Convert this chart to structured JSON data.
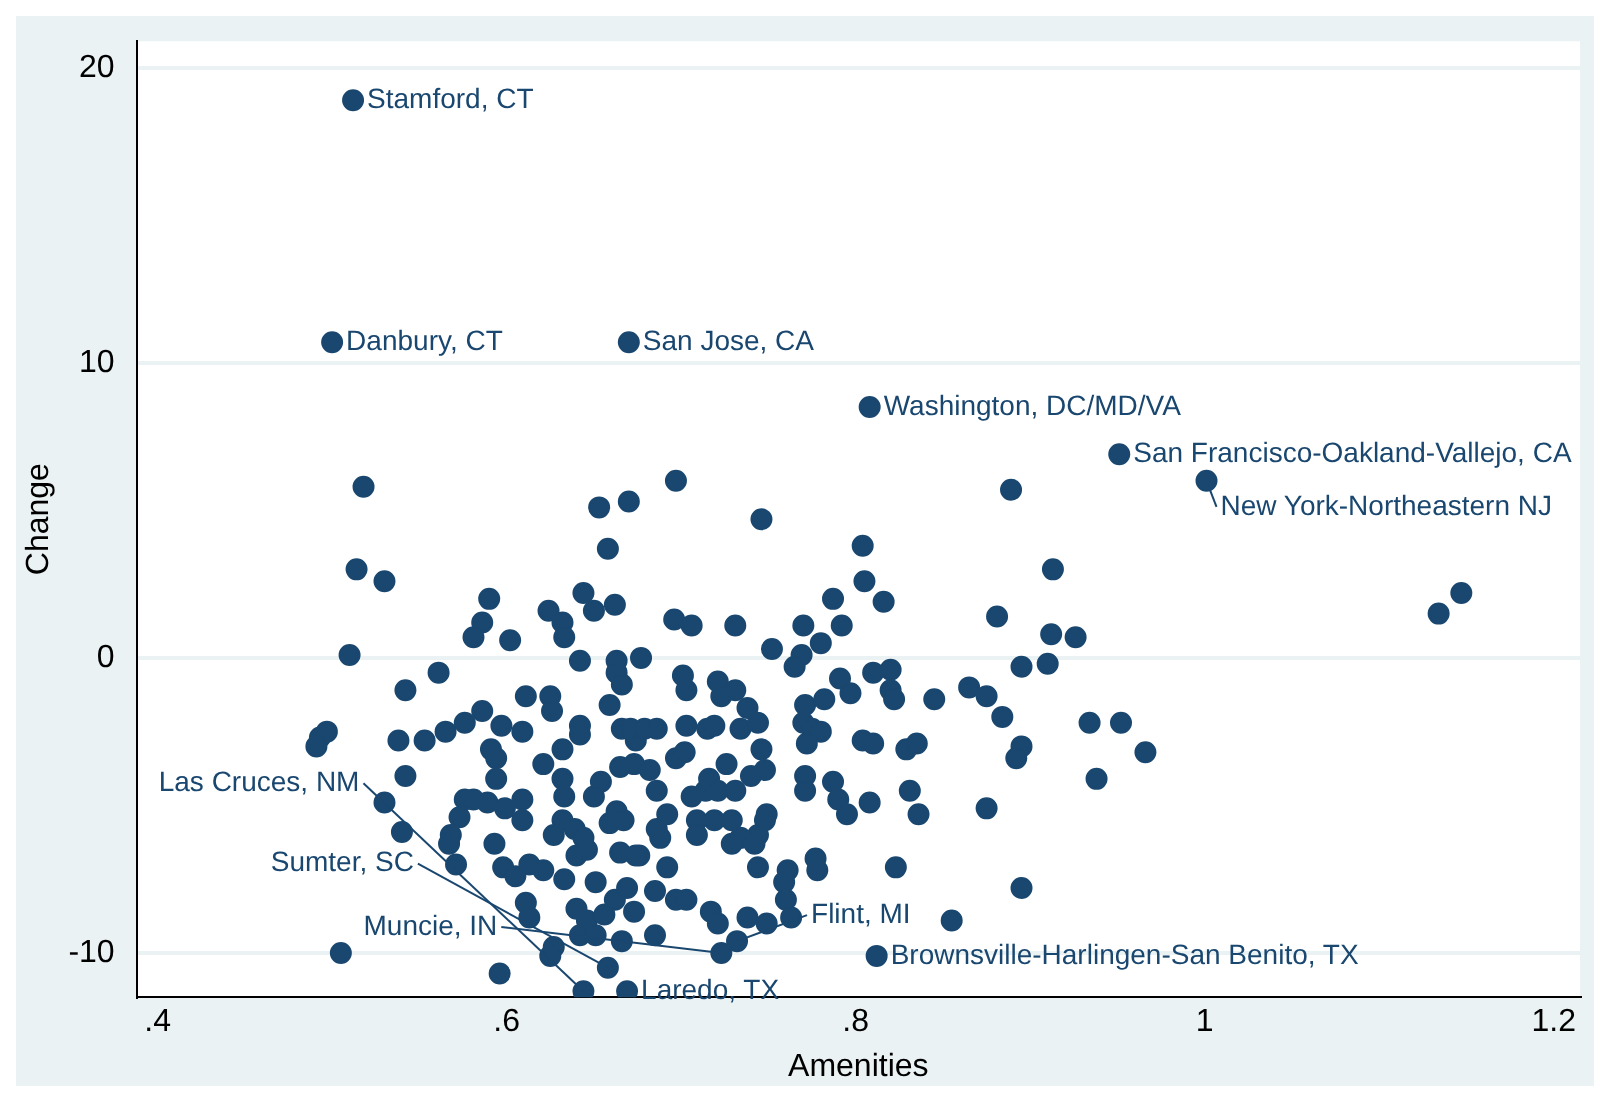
{
  "chart_data": {
    "type": "scatter",
    "xlabel": "Amenities",
    "ylabel": "Change",
    "color": "#1a476f",
    "marker": "circle",
    "grid": "y",
    "legend": false,
    "xlim": [
      0.388,
      1.215
    ],
    "ylim": [
      -11.5,
      20.9
    ],
    "xticks": [
      {
        "value": 0.4,
        "label": ".4"
      },
      {
        "value": 0.6,
        "label": ".6"
      },
      {
        "value": 0.8,
        "label": ".8"
      },
      1,
      1.2
    ],
    "yticks": [
      -10,
      0,
      10,
      20
    ],
    "x": [
      0.512,
      0.5,
      0.67,
      0.808,
      0.951,
      1.001,
      0.518,
      0.653,
      0.67,
      0.658,
      0.514,
      0.53,
      0.59,
      0.644,
      0.624,
      0.65,
      0.662,
      0.586,
      0.581,
      0.602,
      0.632,
      0.633,
      0.51,
      0.642,
      0.663,
      0.677,
      0.561,
      0.542,
      0.611,
      0.625,
      0.626,
      0.586,
      0.663,
      0.666,
      0.659,
      0.576,
      0.565,
      0.553,
      0.538,
      0.597,
      0.609,
      0.642,
      0.642,
      0.591,
      0.594,
      0.632,
      0.621,
      0.632,
      0.594,
      0.666,
      0.674,
      0.665,
      0.673,
      0.493,
      0.497,
      0.491,
      0.542,
      0.53,
      0.54,
      0.576,
      0.581,
      0.589,
      0.573,
      0.599,
      0.609,
      0.609,
      0.633,
      0.654,
      0.65,
      0.632,
      0.568,
      0.567,
      0.593,
      0.571,
      0.627,
      0.639,
      0.644,
      0.64,
      0.646,
      0.659,
      0.663,
      0.667,
      0.665,
      0.676,
      0.598,
      0.605,
      0.613,
      0.621,
      0.633,
      0.651,
      0.611,
      0.613,
      0.64,
      0.646,
      0.642,
      0.651,
      0.656,
      0.662,
      0.669,
      0.673,
      0.666,
      0.627,
      0.625,
      0.505,
      0.596,
      0.644,
      0.658,
      0.669,
      0.697,
      0.746,
      0.804,
      0.805,
      0.787,
      0.816,
      0.696,
      0.706,
      0.731,
      0.77,
      0.792,
      0.78,
      0.752,
      0.769,
      0.765,
      0.791,
      0.797,
      0.81,
      0.82,
      0.82,
      0.822,
      0.845,
      0.865,
      0.875,
      0.701,
      0.703,
      0.721,
      0.723,
      0.731,
      0.738,
      0.771,
      0.77,
      0.775,
      0.78,
      0.772,
      0.782,
      0.804,
      0.81,
      0.829,
      0.835,
      0.671,
      0.679,
      0.686,
      0.703,
      0.715,
      0.719,
      0.734,
      0.744,
      0.746,
      0.682,
      0.697,
      0.702,
      0.726,
      0.74,
      0.748,
      0.771,
      0.771,
      0.787,
      0.79,
      0.795,
      0.808,
      0.831,
      0.836,
      0.875,
      0.686,
      0.692,
      0.686,
      0.688,
      0.706,
      0.714,
      0.716,
      0.721,
      0.731,
      0.709,
      0.719,
      0.729,
      0.734,
      0.744,
      0.748,
      0.749,
      0.709,
      0.729,
      0.742,
      0.674,
      0.692,
      0.744,
      0.761,
      0.759,
      0.777,
      0.778,
      0.823,
      0.685,
      0.697,
      0.703,
      0.76,
      0.763,
      0.717,
      0.721,
      0.738,
      0.749,
      0.855,
      0.685,
      0.723,
      0.732,
      0.812,
      0.889,
      0.913,
      0.881,
      0.912,
      0.926,
      0.895,
      0.91,
      0.884,
      0.934,
      0.952,
      0.966,
      0.895,
      0.892,
      0.938,
      0.895,
      1.134,
      1.147
    ],
    "values": [
      18.9,
      10.7,
      10.7,
      8.5,
      6.9,
      6.0,
      5.8,
      5.1,
      5.3,
      3.7,
      3.0,
      2.6,
      2.0,
      2.2,
      1.6,
      1.6,
      1.8,
      1.2,
      0.7,
      0.6,
      1.2,
      0.7,
      0.1,
      -0.1,
      -0.1,
      0.0,
      -0.5,
      -1.1,
      -1.3,
      -1.3,
      -1.8,
      -1.8,
      -0.5,
      -0.9,
      -1.6,
      -2.2,
      -2.5,
      -2.8,
      -2.8,
      -2.3,
      -2.5,
      -2.3,
      -2.6,
      -3.1,
      -3.4,
      -3.1,
      -3.6,
      -4.1,
      -4.1,
      -2.4,
      -2.8,
      -3.7,
      -3.6,
      -2.7,
      -2.5,
      -3.0,
      -4.0,
      -4.9,
      -5.9,
      -4.8,
      -4.8,
      -4.9,
      -5.4,
      -5.1,
      -4.8,
      -5.5,
      -4.7,
      -4.2,
      -4.7,
      -5.5,
      -6.0,
      -6.3,
      -6.3,
      -7.0,
      -6.0,
      -5.8,
      -6.1,
      -6.7,
      -6.5,
      -5.6,
      -5.2,
      -5.5,
      -6.6,
      -6.7,
      -7.1,
      -7.4,
      -7.0,
      -7.2,
      -7.5,
      -7.6,
      -8.3,
      -8.8,
      -8.5,
      -8.9,
      -9.4,
      -9.4,
      -8.7,
      -8.2,
      -7.8,
      -8.6,
      -9.6,
      -9.8,
      -10.1,
      -10.0,
      -10.7,
      -11.3,
      -10.5,
      -11.3,
      6.0,
      4.7,
      3.8,
      2.6,
      2.0,
      1.9,
      1.3,
      1.1,
      1.1,
      1.1,
      1.1,
      0.5,
      0.3,
      0.1,
      -0.3,
      -0.7,
      -1.2,
      -0.5,
      -0.4,
      -1.1,
      -1.4,
      -1.4,
      -1.0,
      -1.3,
      -0.6,
      -1.1,
      -0.8,
      -1.3,
      -1.1,
      -1.7,
      -1.6,
      -2.2,
      -2.4,
      -2.5,
      -2.9,
      -1.4,
      -2.8,
      -2.9,
      -3.1,
      -2.9,
      -2.4,
      -2.4,
      -2.4,
      -2.3,
      -2.4,
      -2.3,
      -2.4,
      -2.2,
      -3.1,
      -3.8,
      -3.4,
      -3.2,
      -3.6,
      -4.0,
      -3.8,
      -4.0,
      -4.5,
      -4.2,
      -4.8,
      -5.3,
      -4.9,
      -4.5,
      -5.3,
      -5.1,
      -4.5,
      -5.3,
      -5.8,
      -6.1,
      -4.7,
      -4.5,
      -4.1,
      -4.5,
      -4.5,
      -5.5,
      -5.5,
      -5.5,
      -6.1,
      -6.0,
      -5.5,
      -5.3,
      -6.0,
      -6.3,
      -6.3,
      -6.7,
      -7.1,
      -7.1,
      -7.2,
      -7.6,
      -6.8,
      -7.2,
      -7.1,
      -7.9,
      -8.2,
      -8.2,
      -8.2,
      -8.8,
      -8.6,
      -9.0,
      -8.8,
      -9.0,
      -8.9,
      -9.4,
      -10.0,
      -9.6,
      -10.1,
      5.7,
      3.0,
      1.4,
      0.8,
      0.7,
      -0.3,
      -0.2,
      -2.0,
      -2.2,
      -2.2,
      -3.2,
      -3.0,
      -3.4,
      -4.1,
      -7.8,
      1.5,
      2.2
    ],
    "annotations": [
      {
        "text": "Stamford, CT",
        "x": 0.512,
        "y": 18.9
      },
      {
        "text": "Danbury, CT",
        "x": 0.5,
        "y": 10.7
      },
      {
        "text": "San Jose, CA",
        "x": 0.67,
        "y": 10.7
      },
      {
        "text": "Washington, DC/MD/VA",
        "x": 0.808,
        "y": 8.5
      },
      {
        "text": "San Francisco-Oakland-Vallejo, CA",
        "x": 0.951,
        "y": 6.9
      },
      {
        "text": "New York-Northeastern NJ",
        "x": 1.001,
        "y": 6.0
      },
      {
        "text": "Flint, MI",
        "x": 0.732,
        "y": -9.6
      },
      {
        "text": "Muncie, IN",
        "x": 0.723,
        "y": -10.0
      },
      {
        "text": "Brownsville-Harlingen-San Benito, TX",
        "x": 0.812,
        "y": -10.1
      },
      {
        "text": "Sumter, SC",
        "x": 0.658,
        "y": -10.5
      },
      {
        "text": "Laredo, TX",
        "x": 0.669,
        "y": -11.3
      },
      {
        "text": "Las Cruces, NM",
        "x": 0.644,
        "y": -11.3
      }
    ]
  }
}
